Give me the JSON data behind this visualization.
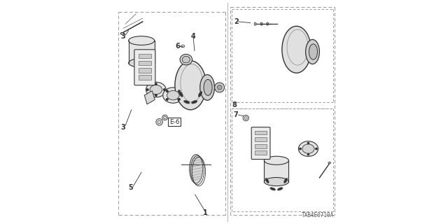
{
  "bg_color": "#ffffff",
  "line_color": "#333333",
  "light_gray": "#aaaaaa",
  "dash_color": "#666666",
  "diagram_code": "TXB4E0710A",
  "figsize": [
    6.4,
    3.2
  ],
  "dpi": 100
}
